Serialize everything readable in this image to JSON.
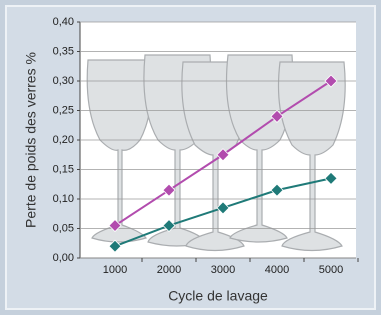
{
  "chart_data": {
    "type": "line",
    "y_label": "Perte de poids des verres %",
    "x_label": "Cycle de lavage",
    "categories": [
      "1000",
      "2000",
      "3000",
      "4000",
      "5000"
    ],
    "series": [
      {
        "color": "#b24cae",
        "values": [
          0.055,
          0.115,
          0.175,
          0.24,
          0.3
        ]
      },
      {
        "color": "#1f7a78",
        "values": [
          0.02,
          0.055,
          0.085,
          0.115,
          0.135
        ]
      }
    ],
    "ylim": [
      0,
      0.4
    ],
    "yticks": [
      {
        "value": 0,
        "label": "0,00"
      },
      {
        "value": 0.05,
        "label": "0,05"
      },
      {
        "value": 0.1,
        "label": "0,10"
      },
      {
        "value": 0.15,
        "label": "0,15"
      },
      {
        "value": 0.2,
        "label": "0,20"
      },
      {
        "value": 0.25,
        "label": "0,25"
      },
      {
        "value": 0.3,
        "label": "0,30"
      },
      {
        "value": 0.35,
        "label": "0,35"
      },
      {
        "value": 0.4,
        "label": "0,40"
      }
    ],
    "grid": true
  }
}
